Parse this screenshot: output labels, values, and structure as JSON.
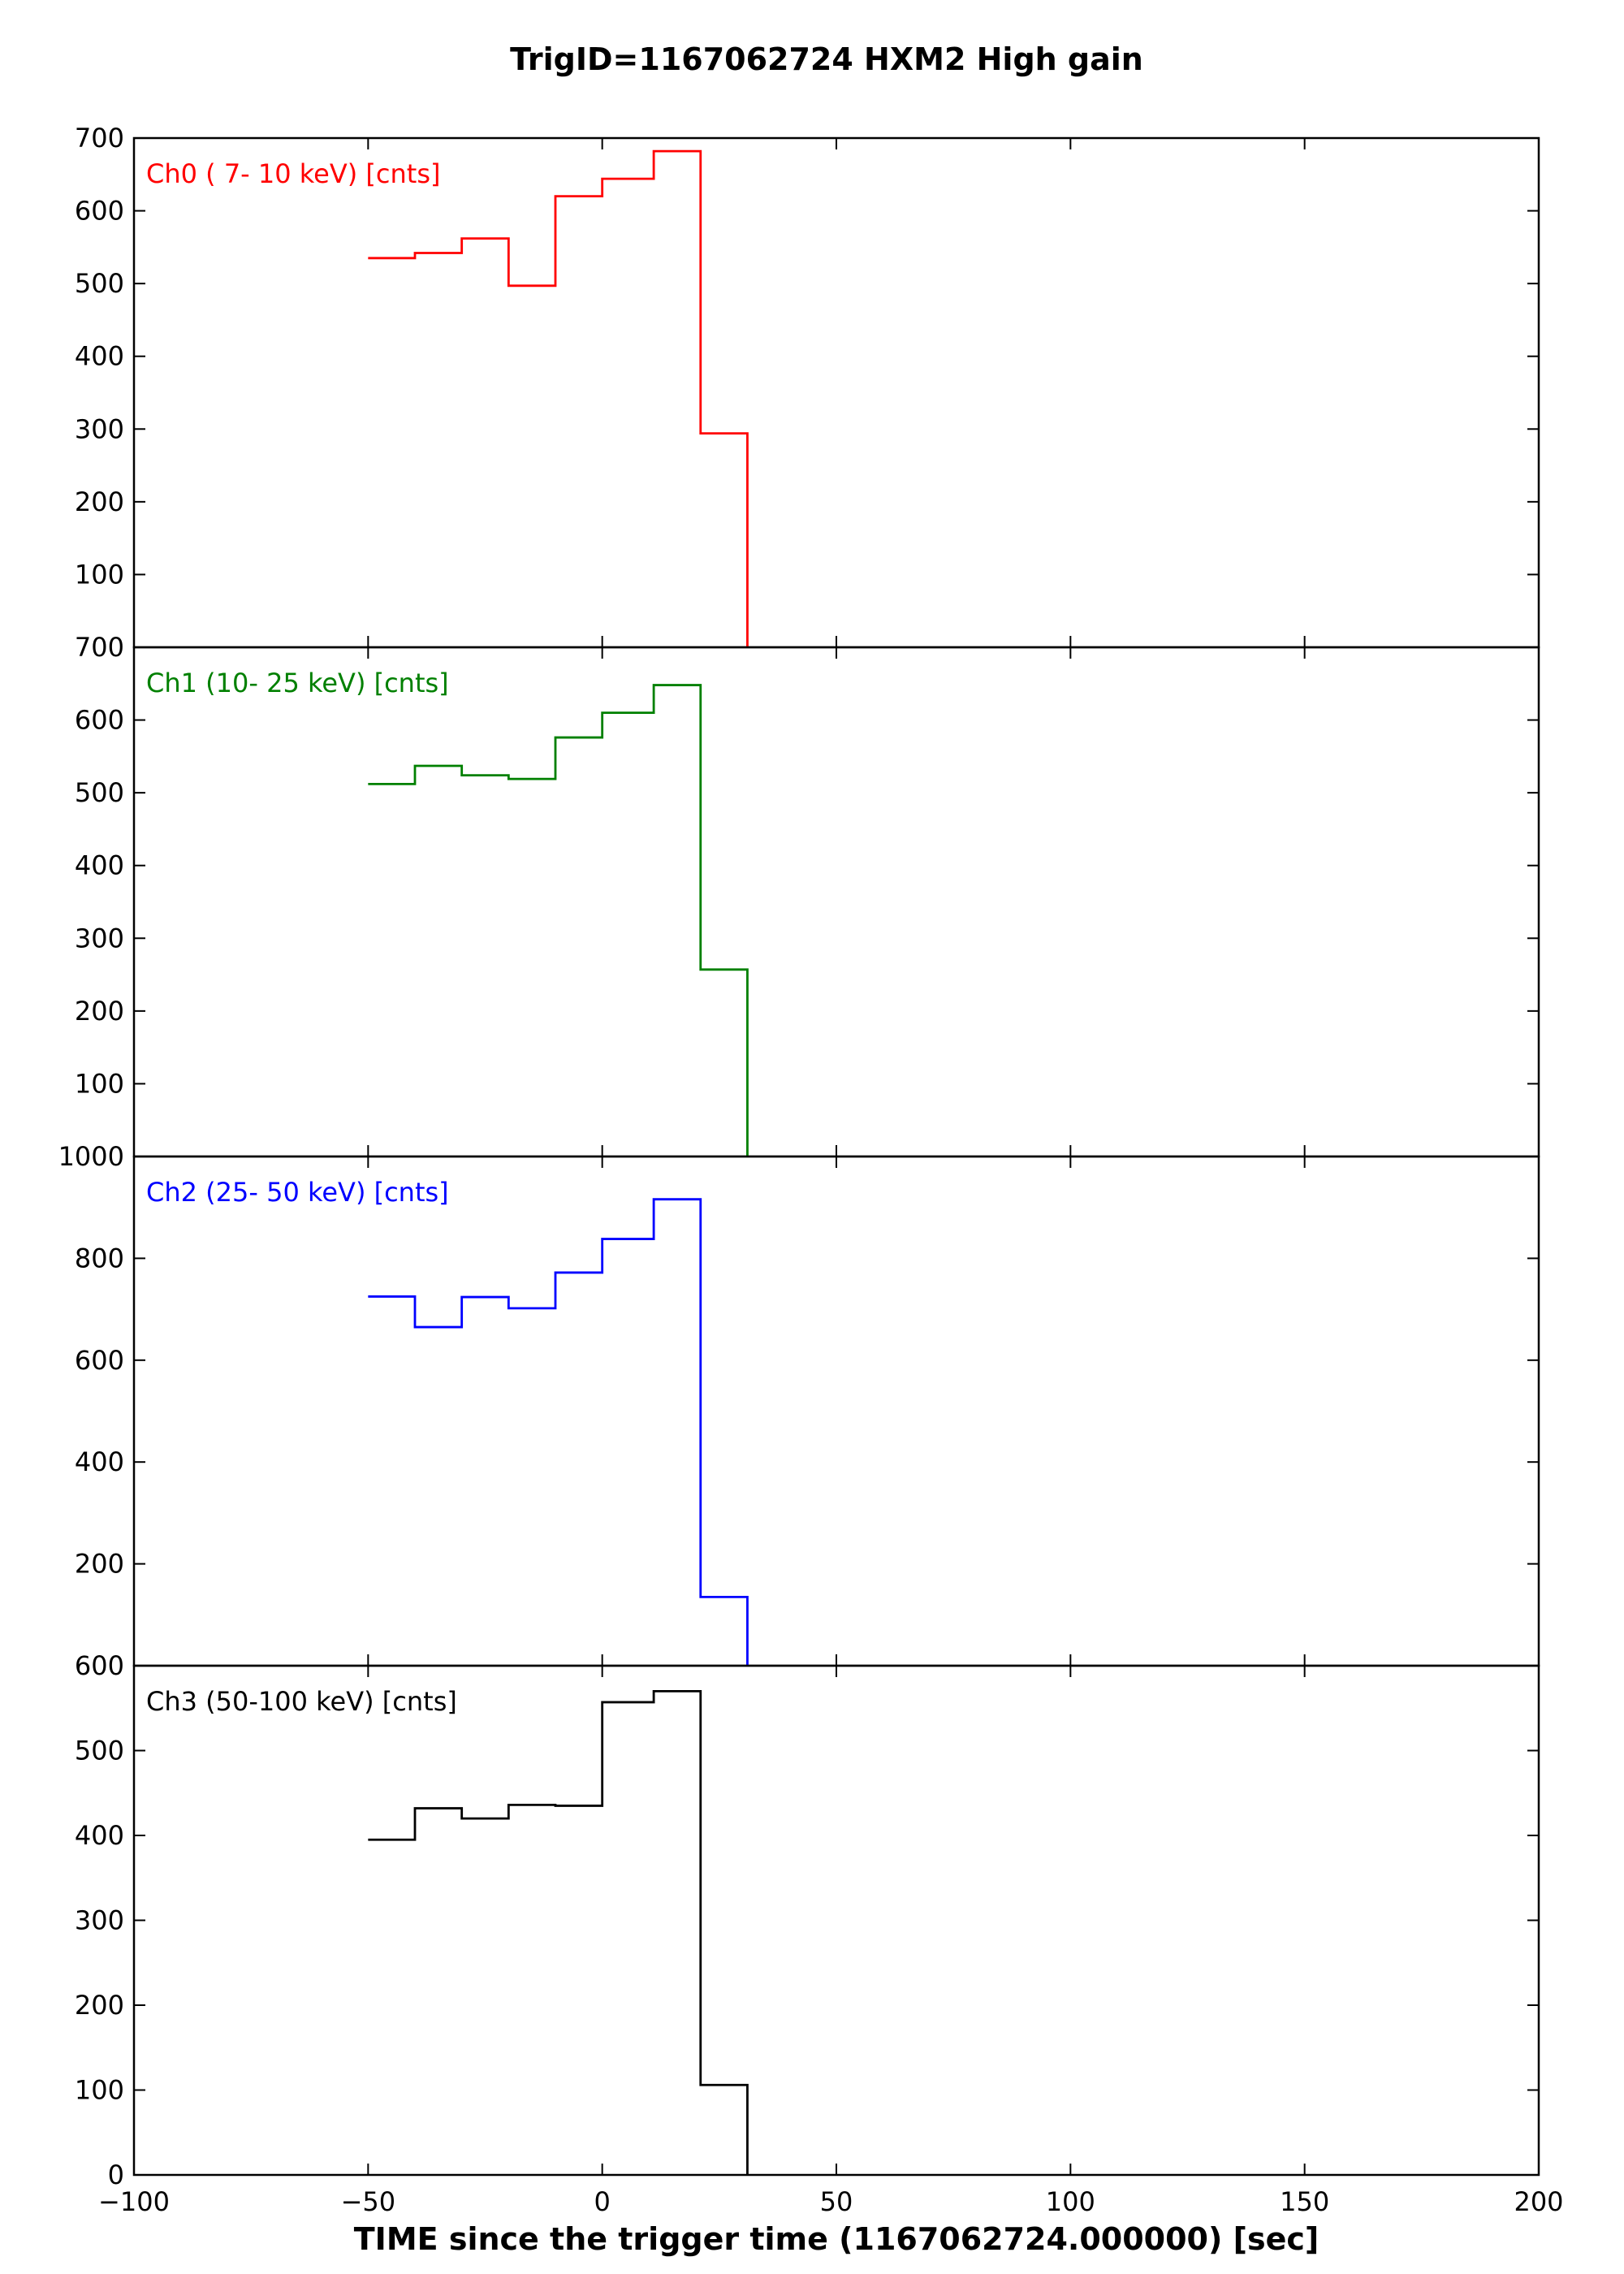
{
  "chart_data": {
    "type": "line",
    "title": "TrigID=1167062724 HXM2 High gain",
    "xlabel": "TIME since the trigger time (1167062724.000000) [sec]",
    "xlim": [
      -100,
      200
    ],
    "xticks": [
      -100,
      -50,
      0,
      50,
      100,
      150,
      200
    ],
    "xtick_labels": [
      "−100",
      "−50",
      "0",
      "50",
      "100",
      "150",
      "200"
    ],
    "bin_edges": [
      -50,
      -40,
      -30,
      -20,
      -10,
      0,
      11,
      21,
      31
    ],
    "panels": [
      {
        "name": "Ch0 ( 7- 10 keV) [cnts]",
        "color": "#ff0000",
        "ylim": [
          0,
          700
        ],
        "yticks": [
          100,
          200,
          300,
          400,
          500,
          600,
          700
        ],
        "values": [
          535,
          542,
          562,
          497,
          620,
          644,
          682,
          294
        ]
      },
      {
        "name": "Ch1 (10- 25 keV) [cnts]",
        "color": "#008000",
        "ylim": [
          0,
          700
        ],
        "yticks": [
          100,
          200,
          300,
          400,
          500,
          600,
          700
        ],
        "values": [
          512,
          537,
          524,
          519,
          576,
          610,
          648,
          257
        ]
      },
      {
        "name": "Ch2 (25- 50 keV) [cnts]",
        "color": "#0000ff",
        "ylim": [
          0,
          1000
        ],
        "yticks": [
          200,
          400,
          600,
          800,
          1000
        ],
        "values": [
          725,
          665,
          724,
          702,
          772,
          838,
          916,
          135
        ]
      },
      {
        "name": "Ch3 (50-100 keV) [cnts]",
        "color": "#000000",
        "ylim": [
          0,
          600
        ],
        "yticks": [
          0,
          100,
          200,
          300,
          400,
          500,
          600
        ],
        "values": [
          395,
          432,
          420,
          436,
          435,
          557,
          570,
          106
        ]
      }
    ]
  }
}
